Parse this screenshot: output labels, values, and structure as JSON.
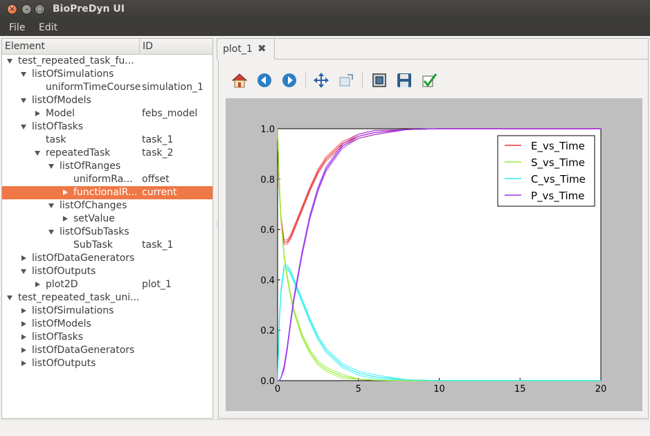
{
  "window": {
    "title": "BioPreDyn UI"
  },
  "menu": {
    "file": "File",
    "edit": "Edit"
  },
  "tree": {
    "headers": {
      "element": "Element",
      "id": "ID"
    },
    "rows": [
      {
        "name": "test_repeated_task_fu...",
        "id": "",
        "indent": 0,
        "arrow": "down",
        "selected": false
      },
      {
        "name": "listOfSimulations",
        "id": "",
        "indent": 1,
        "arrow": "down",
        "selected": false
      },
      {
        "name": "uniformTimeCourse",
        "id": "simulation_1",
        "indent": 2,
        "arrow": "",
        "selected": false
      },
      {
        "name": "listOfModels",
        "id": "",
        "indent": 1,
        "arrow": "down",
        "selected": false
      },
      {
        "name": "Model",
        "id": "febs_model",
        "indent": 2,
        "arrow": "right",
        "selected": false
      },
      {
        "name": "listOfTasks",
        "id": "",
        "indent": 1,
        "arrow": "down",
        "selected": false
      },
      {
        "name": "task",
        "id": "task_1",
        "indent": 2,
        "arrow": "",
        "selected": false
      },
      {
        "name": "repeatedTask",
        "id": "task_2",
        "indent": 2,
        "arrow": "down",
        "selected": false
      },
      {
        "name": "listOfRanges",
        "id": "",
        "indent": 3,
        "arrow": "down",
        "selected": false
      },
      {
        "name": "uniformRa...",
        "id": "offset",
        "indent": 4,
        "arrow": "",
        "selected": false
      },
      {
        "name": "functionalR...",
        "id": "current",
        "indent": 4,
        "arrow": "right",
        "selected": true
      },
      {
        "name": "listOfChanges",
        "id": "",
        "indent": 3,
        "arrow": "down",
        "selected": false
      },
      {
        "name": "setValue",
        "id": "",
        "indent": 4,
        "arrow": "right",
        "selected": false
      },
      {
        "name": "listOfSubTasks",
        "id": "",
        "indent": 3,
        "arrow": "down",
        "selected": false
      },
      {
        "name": "SubTask",
        "id": "task_1",
        "indent": 4,
        "arrow": "",
        "selected": false
      },
      {
        "name": "listOfDataGenerators",
        "id": "",
        "indent": 1,
        "arrow": "right",
        "selected": false
      },
      {
        "name": "listOfOutputs",
        "id": "",
        "indent": 1,
        "arrow": "down",
        "selected": false
      },
      {
        "name": "plot2D",
        "id": "plot_1",
        "indent": 2,
        "arrow": "right",
        "selected": false
      },
      {
        "name": "test_repeated_task_uni...",
        "id": "",
        "indent": 0,
        "arrow": "down",
        "selected": false
      },
      {
        "name": "listOfSimulations",
        "id": "",
        "indent": 1,
        "arrow": "right",
        "selected": false
      },
      {
        "name": "listOfModels",
        "id": "",
        "indent": 1,
        "arrow": "right",
        "selected": false
      },
      {
        "name": "listOfTasks",
        "id": "",
        "indent": 1,
        "arrow": "right",
        "selected": false
      },
      {
        "name": "listOfDataGenerators",
        "id": "",
        "indent": 1,
        "arrow": "right",
        "selected": false
      },
      {
        "name": "listOfOutputs",
        "id": "",
        "indent": 1,
        "arrow": "right",
        "selected": false
      }
    ]
  },
  "tabs": [
    {
      "label": "plot_1"
    }
  ],
  "toolbar": {
    "buttons": [
      {
        "name": "home-button",
        "icon": "home-icon"
      },
      {
        "name": "back-button",
        "icon": "arrow-left-icon"
      },
      {
        "name": "forward-button",
        "icon": "arrow-right-icon"
      },
      {
        "name": "pan-button",
        "icon": "move-icon"
      },
      {
        "name": "zoom-button",
        "icon": "zoom-rect-icon"
      },
      {
        "name": "subplots-button",
        "icon": "configure-subplots-icon"
      },
      {
        "name": "save-button",
        "icon": "floppy-disk-icon"
      },
      {
        "name": "edit-axis-button",
        "icon": "checkmark-icon"
      }
    ]
  },
  "colors": {
    "selection": "#f07746",
    "E": "#ee3333",
    "S": "#99ee33",
    "C": "#33eeee",
    "P": "#9933ee"
  },
  "chart_data": {
    "type": "line",
    "title": "",
    "xlabel": "",
    "ylabel": "",
    "xlim": [
      0,
      20
    ],
    "ylim": [
      0.0,
      1.0
    ],
    "xticks": [
      "0",
      "5",
      "10",
      "15",
      "20"
    ],
    "yticks": [
      "0.0",
      "0.2",
      "0.4",
      "0.6",
      "0.8",
      "1.0"
    ],
    "legend_position": "top-right",
    "series": [
      {
        "name": "E_vs_Time",
        "color": "#ee3333",
        "x": [
          0,
          0.1,
          0.2,
          0.4,
          0.6,
          0.8,
          1,
          1.5,
          2,
          2.5,
          3,
          4,
          5,
          6,
          8,
          10,
          15,
          20
        ],
        "y": [
          1.0,
          0.78,
          0.65,
          0.55,
          0.55,
          0.57,
          0.6,
          0.68,
          0.76,
          0.83,
          0.88,
          0.94,
          0.97,
          0.985,
          0.997,
          1.0,
          1.0,
          1.0
        ]
      },
      {
        "name": "S_vs_Time",
        "color": "#99ee33",
        "x": [
          0,
          0.1,
          0.2,
          0.4,
          0.6,
          0.8,
          1,
          1.5,
          2,
          2.5,
          3,
          4,
          5,
          6,
          8,
          10,
          15,
          20
        ],
        "y": [
          1.0,
          0.8,
          0.65,
          0.5,
          0.41,
          0.34,
          0.28,
          0.18,
          0.115,
          0.07,
          0.045,
          0.017,
          0.006,
          0.002,
          0.0,
          0.0,
          0.0,
          0.0
        ]
      },
      {
        "name": "C_vs_Time",
        "color": "#33eeee",
        "x": [
          0,
          0.1,
          0.2,
          0.4,
          0.6,
          0.8,
          1,
          1.5,
          2,
          2.5,
          3,
          4,
          5,
          6,
          8,
          10,
          15,
          20
        ],
        "y": [
          0.0,
          0.22,
          0.35,
          0.45,
          0.45,
          0.43,
          0.4,
          0.32,
          0.24,
          0.17,
          0.12,
          0.06,
          0.03,
          0.015,
          0.003,
          0.0,
          0.0,
          0.0
        ]
      },
      {
        "name": "P_vs_Time",
        "color": "#9933ee",
        "x": [
          0,
          0.1,
          0.2,
          0.4,
          0.6,
          0.8,
          1,
          1.5,
          2,
          2.5,
          3,
          4,
          5,
          6,
          8,
          10,
          15,
          20
        ],
        "y": [
          0.0,
          0.0,
          0.01,
          0.05,
          0.13,
          0.23,
          0.32,
          0.5,
          0.65,
          0.76,
          0.84,
          0.93,
          0.97,
          0.985,
          0.997,
          1.0,
          1.0,
          1.0
        ]
      }
    ]
  }
}
